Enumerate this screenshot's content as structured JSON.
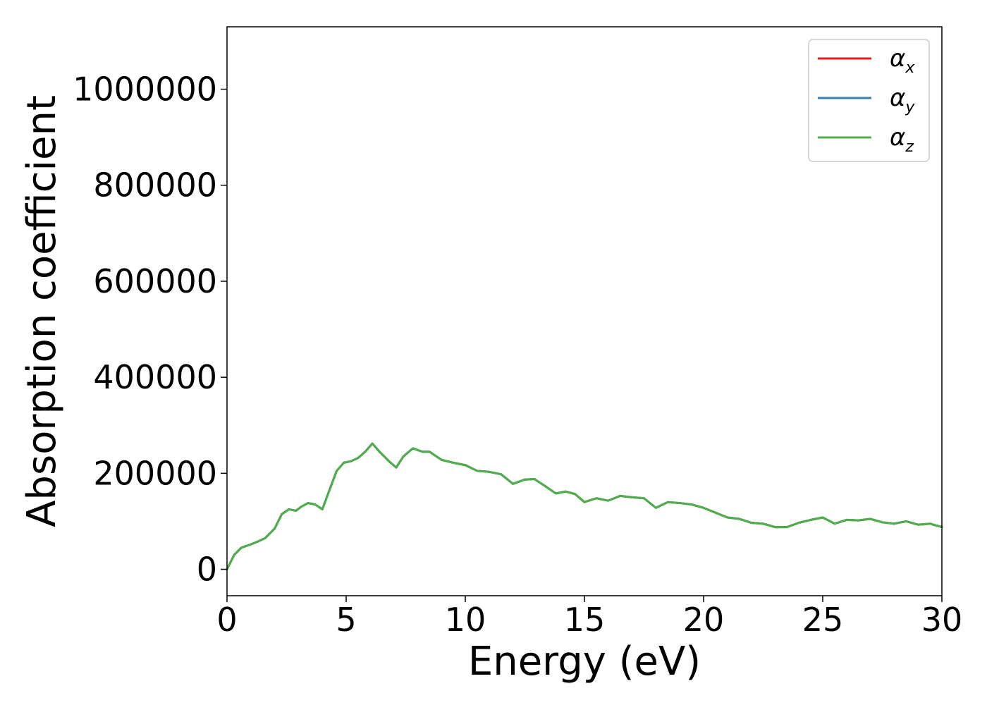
{
  "chart_data": {
    "type": "line",
    "xlabel": "Energy (eV)",
    "ylabel": "Absorption coefficient",
    "xlim": [
      0,
      30
    ],
    "ylim": [
      -55000,
      1130000
    ],
    "xticks": [
      0,
      5,
      10,
      15,
      20,
      25,
      30
    ],
    "xtick_labels": [
      "0",
      "5",
      "10",
      "15",
      "20",
      "25",
      "30"
    ],
    "yticks": [
      0,
      200000,
      400000,
      600000,
      800000,
      1000000
    ],
    "ytick_labels": [
      "0",
      "200000",
      "400000",
      "600000",
      "800000",
      "1000000"
    ],
    "grid": false,
    "legend_position": "top-right",
    "x": [
      0,
      0.3,
      0.6,
      1.0,
      1.3,
      1.6,
      2.0,
      2.3,
      2.6,
      2.9,
      3.1,
      3.4,
      3.7,
      4.0,
      4.3,
      4.6,
      4.9,
      5.2,
      5.5,
      5.8,
      6.1,
      6.4,
      6.8,
      7.1,
      7.4,
      7.8,
      8.2,
      8.5,
      9.0,
      9.5,
      10.0,
      10.5,
      11.0,
      11.5,
      12.0,
      12.5,
      12.9,
      13.3,
      13.8,
      14.2,
      14.6,
      15.0,
      15.5,
      16.0,
      16.5,
      17.0,
      17.5,
      18.0,
      18.5,
      19.0,
      19.5,
      20.0,
      20.5,
      21.0,
      21.5,
      22.0,
      22.5,
      23.0,
      23.5,
      24.0,
      24.5,
      25.0,
      25.5,
      26.0,
      26.5,
      27.0,
      27.5,
      28.0,
      28.5,
      29.0,
      29.5,
      30.0
    ],
    "series": [
      {
        "name": "α_x",
        "label_main": "α",
        "label_sub": "x",
        "color": "#e41a1c",
        "values": [
          0,
          30000,
          45000,
          52000,
          58000,
          65000,
          85000,
          115000,
          125000,
          122000,
          130000,
          138000,
          135000,
          125000,
          165000,
          205000,
          222000,
          225000,
          232000,
          245000,
          262000,
          245000,
          225000,
          212000,
          235000,
          252000,
          245000,
          245000,
          228000,
          222000,
          217000,
          205000,
          203000,
          198000,
          178000,
          187000,
          188000,
          175000,
          158000,
          162000,
          157000,
          140000,
          148000,
          143000,
          153000,
          150000,
          148000,
          128000,
          140000,
          138000,
          135000,
          128000,
          118000,
          108000,
          105000,
          97000,
          95000,
          88000,
          88000,
          97000,
          103000,
          108000,
          95000,
          103000,
          102000,
          105000,
          98000,
          95000,
          100000,
          93000,
          95000,
          88000
        ]
      },
      {
        "name": "α_y",
        "label_main": "α",
        "label_sub": "y",
        "color": "#377eb8",
        "values": [
          0,
          30000,
          45000,
          52000,
          58000,
          65000,
          85000,
          115000,
          125000,
          122000,
          130000,
          138000,
          135000,
          125000,
          165000,
          205000,
          222000,
          225000,
          232000,
          245000,
          262000,
          245000,
          225000,
          212000,
          235000,
          252000,
          245000,
          245000,
          228000,
          222000,
          217000,
          205000,
          203000,
          198000,
          178000,
          187000,
          188000,
          175000,
          158000,
          162000,
          157000,
          140000,
          148000,
          143000,
          153000,
          150000,
          148000,
          128000,
          140000,
          138000,
          135000,
          128000,
          118000,
          108000,
          105000,
          97000,
          95000,
          88000,
          88000,
          97000,
          103000,
          108000,
          95000,
          103000,
          102000,
          105000,
          98000,
          95000,
          100000,
          93000,
          95000,
          88000
        ]
      },
      {
        "name": "α_z",
        "label_main": "α",
        "label_sub": "z",
        "color": "#4daf4a",
        "values": [
          0,
          30000,
          45000,
          52000,
          58000,
          65000,
          85000,
          115000,
          125000,
          122000,
          130000,
          138000,
          135000,
          125000,
          165000,
          205000,
          222000,
          225000,
          232000,
          245000,
          262000,
          245000,
          225000,
          212000,
          235000,
          252000,
          245000,
          245000,
          228000,
          222000,
          217000,
          205000,
          203000,
          198000,
          178000,
          187000,
          188000,
          175000,
          158000,
          162000,
          157000,
          140000,
          148000,
          143000,
          153000,
          150000,
          148000,
          128000,
          140000,
          138000,
          135000,
          128000,
          118000,
          108000,
          105000,
          97000,
          95000,
          88000,
          88000,
          97000,
          103000,
          108000,
          95000,
          103000,
          102000,
          105000,
          98000,
          95000,
          100000,
          93000,
          95000,
          88000
        ]
      }
    ]
  }
}
